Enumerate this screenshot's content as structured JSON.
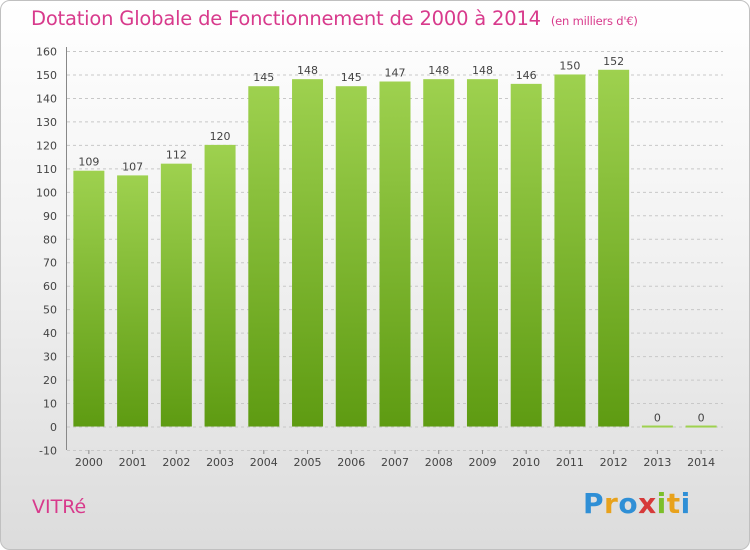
{
  "title": "Dotation Globale de Fonctionnement de 2000 à 2014",
  "subtitle": "(en milliers d'€)",
  "commune": "VITRé",
  "logo": {
    "text": "Proxiti",
    "letters": [
      {
        "ch": "P",
        "color": "#2f8fd6"
      },
      {
        "ch": "r",
        "color": "#e8a21c"
      },
      {
        "ch": "o",
        "color": "#2f8fd6"
      },
      {
        "ch": "x",
        "color": "#d63a3a"
      },
      {
        "ch": "i",
        "color": "#7cbf2a"
      },
      {
        "ch": "t",
        "color": "#e8a21c"
      },
      {
        "ch": "i",
        "color": "#2f8fd6"
      }
    ]
  },
  "colors": {
    "bar_top": "#9ed14f",
    "bar_bottom": "#5e9b12",
    "grid": "#c8c8c8",
    "title": "#d83a8c"
  },
  "chart_data": {
    "type": "bar",
    "categories": [
      "2000",
      "2001",
      "2002",
      "2003",
      "2004",
      "2005",
      "2006",
      "2007",
      "2008",
      "2009",
      "2010",
      "2011",
      "2012",
      "2013",
      "2014"
    ],
    "values": [
      109,
      107,
      112,
      120,
      145,
      148,
      145,
      147,
      148,
      148,
      146,
      150,
      152,
      0,
      0
    ],
    "value_labels": [
      "109",
      "107",
      "112",
      "120",
      "145",
      "148",
      "145",
      "147",
      "148",
      "148",
      "146",
      "150",
      "152",
      "0",
      "0"
    ],
    "ylim": [
      -10,
      160
    ],
    "yticks": [
      -10,
      0,
      10,
      20,
      30,
      40,
      50,
      60,
      70,
      80,
      90,
      100,
      110,
      120,
      130,
      140,
      150,
      160
    ],
    "grid": true,
    "title": "Dotation Globale de Fonctionnement de 2000 à 2014",
    "xlabel": "",
    "ylabel": ""
  }
}
